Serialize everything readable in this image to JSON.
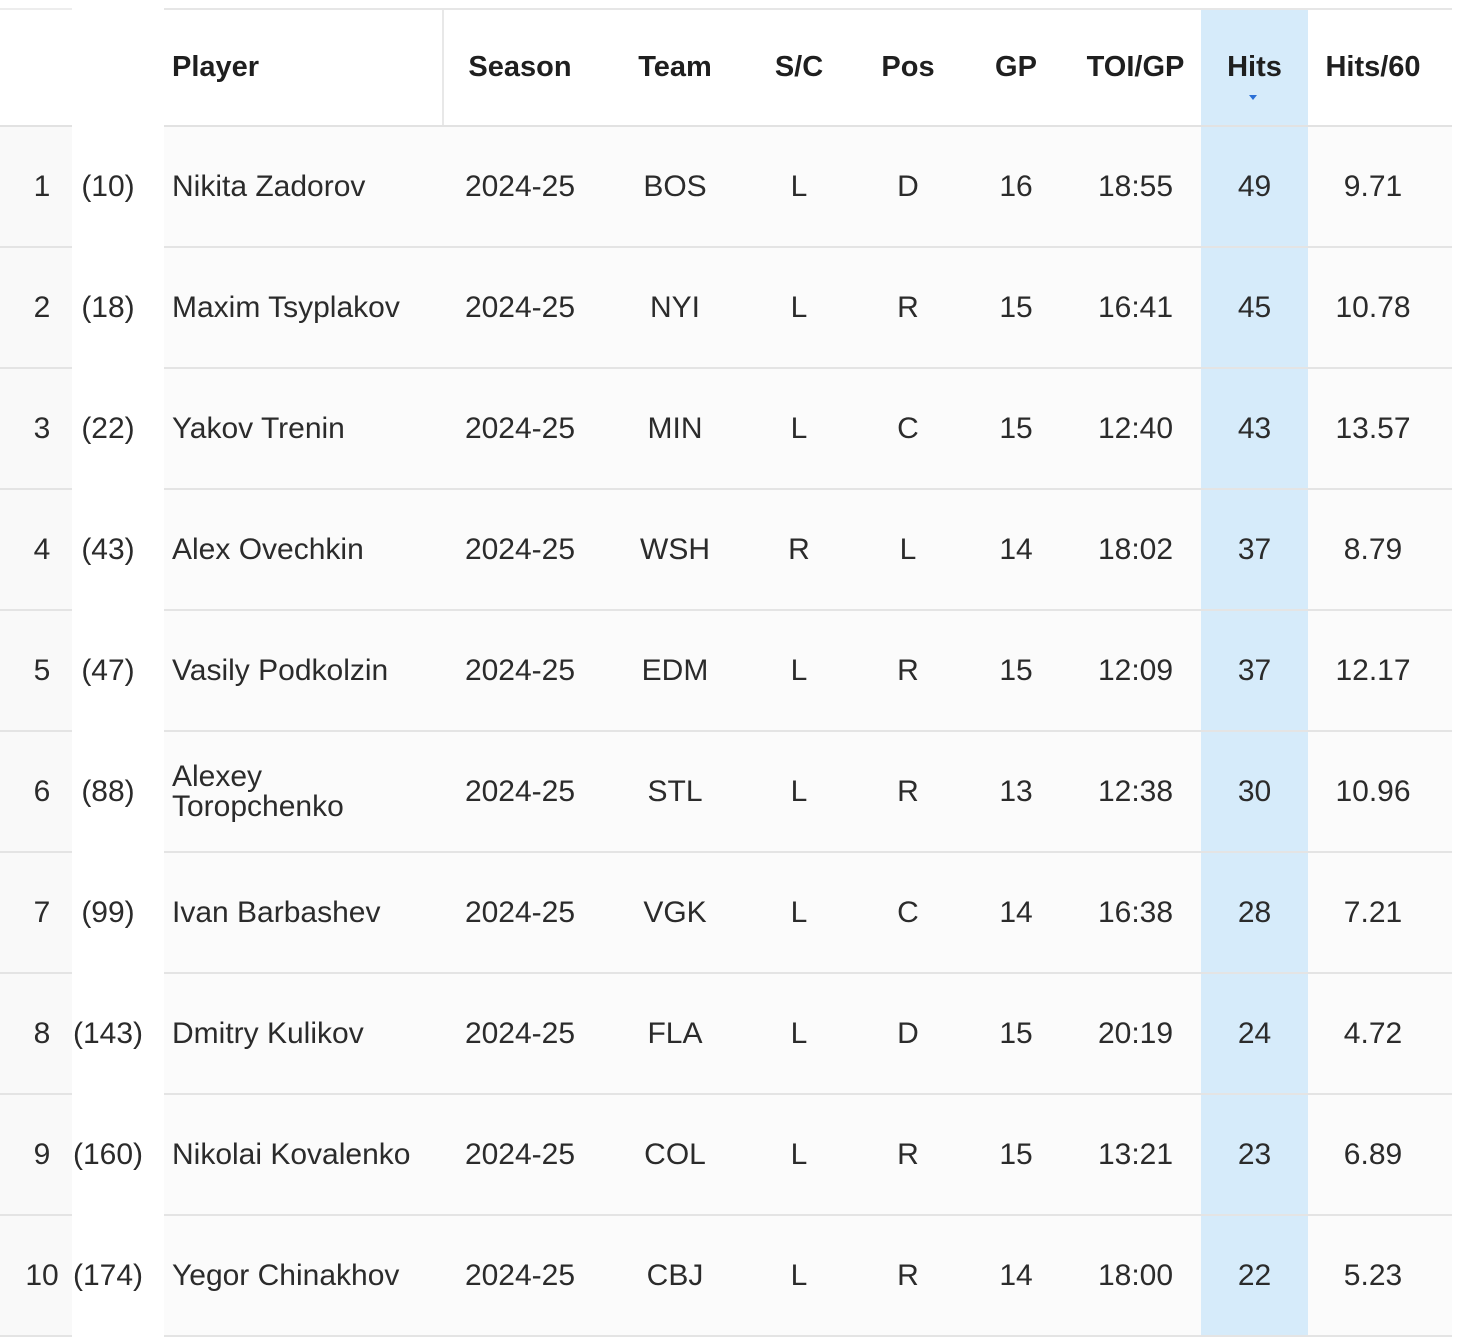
{
  "table": {
    "headers": {
      "player": "Player",
      "season": "Season",
      "team": "Team",
      "shoots_catches": "S/C",
      "pos": "Pos",
      "gp": "GP",
      "toi_gp": "TOI/GP",
      "hits": "Hits",
      "hits_per_60": "Hits/60"
    },
    "sorted_by": "Hits",
    "sort_direction": "descending",
    "highlight_color": "#d6ebfa",
    "rows": [
      {
        "rank": "1",
        "prev": "(10)",
        "player": "Nikita Zadorov",
        "season": "2024-25",
        "team": "BOS",
        "sc": "L",
        "pos": "D",
        "gp": "16",
        "toi": "18:55",
        "hits": "49",
        "hits60": "9.71"
      },
      {
        "rank": "2",
        "prev": "(18)",
        "player": "Maxim Tsyplakov",
        "season": "2024-25",
        "team": "NYI",
        "sc": "L",
        "pos": "R",
        "gp": "15",
        "toi": "16:41",
        "hits": "45",
        "hits60": "10.78"
      },
      {
        "rank": "3",
        "prev": "(22)",
        "player": "Yakov Trenin",
        "season": "2024-25",
        "team": "MIN",
        "sc": "L",
        "pos": "C",
        "gp": "15",
        "toi": "12:40",
        "hits": "43",
        "hits60": "13.57"
      },
      {
        "rank": "4",
        "prev": "(43)",
        "player": "Alex Ovechkin",
        "season": "2024-25",
        "team": "WSH",
        "sc": "R",
        "pos": "L",
        "gp": "14",
        "toi": "18:02",
        "hits": "37",
        "hits60": "8.79"
      },
      {
        "rank": "5",
        "prev": "(47)",
        "player": "Vasily Podkolzin",
        "season": "2024-25",
        "team": "EDM",
        "sc": "L",
        "pos": "R",
        "gp": "15",
        "toi": "12:09",
        "hits": "37",
        "hits60": "12.17"
      },
      {
        "rank": "6",
        "prev": "(88)",
        "player": "Alexey Toropchenko",
        "season": "2024-25",
        "team": "STL",
        "sc": "L",
        "pos": "R",
        "gp": "13",
        "toi": "12:38",
        "hits": "30",
        "hits60": "10.96"
      },
      {
        "rank": "7",
        "prev": "(99)",
        "player": "Ivan Barbashev",
        "season": "2024-25",
        "team": "VGK",
        "sc": "L",
        "pos": "C",
        "gp": "14",
        "toi": "16:38",
        "hits": "28",
        "hits60": "7.21"
      },
      {
        "rank": "8",
        "prev": "(143)",
        "player": "Dmitry Kulikov",
        "season": "2024-25",
        "team": "FLA",
        "sc": "L",
        "pos": "D",
        "gp": "15",
        "toi": "20:19",
        "hits": "24",
        "hits60": "4.72"
      },
      {
        "rank": "9",
        "prev": "(160)",
        "player": "Nikolai Kovalenko",
        "season": "2024-25",
        "team": "COL",
        "sc": "L",
        "pos": "R",
        "gp": "15",
        "toi": "13:21",
        "hits": "23",
        "hits60": "6.89"
      },
      {
        "rank": "10",
        "prev": "(174)",
        "player": "Yegor Chinakhov",
        "season": "2024-25",
        "team": "CBJ",
        "sc": "L",
        "pos": "R",
        "gp": "14",
        "toi": "18:00",
        "hits": "22",
        "hits60": "5.23"
      }
    ]
  }
}
